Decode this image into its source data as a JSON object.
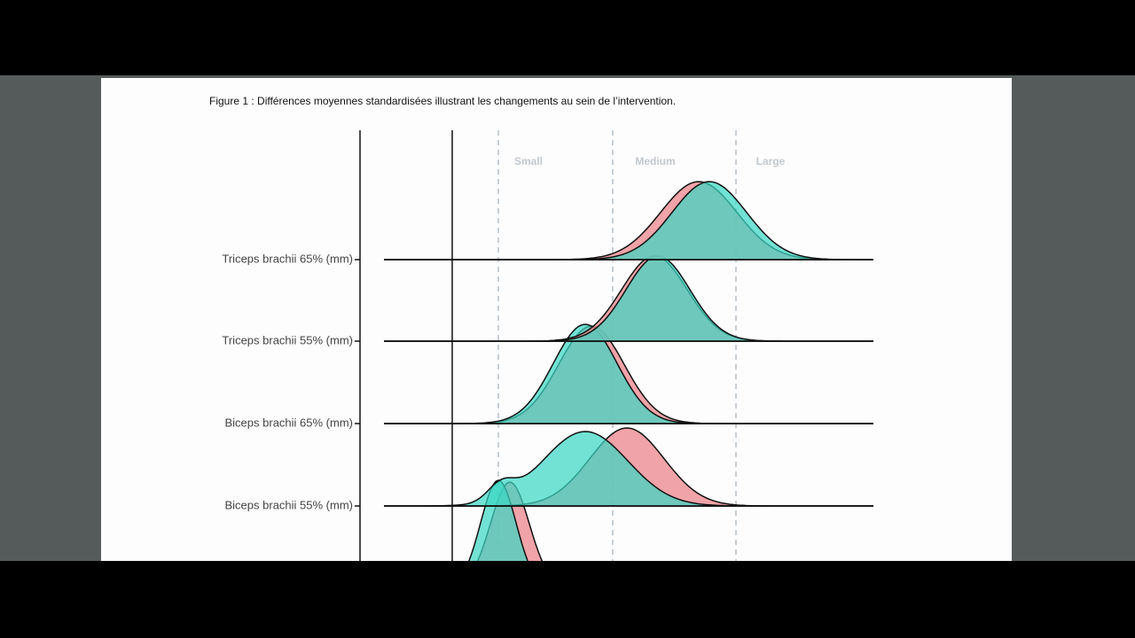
{
  "caption": "Figure 1 : Différences moyennes standardisées illustrant les changements au sein de l’intervention.",
  "effect_sizes": [
    "Small",
    "Medium",
    "Large"
  ],
  "rows": [
    "Triceps brachii 65% (mm)",
    "Triceps brachii 55% (mm)",
    "Biceps brachii 65% (mm)",
    "Biceps brachii 55% (mm)"
  ]
}
